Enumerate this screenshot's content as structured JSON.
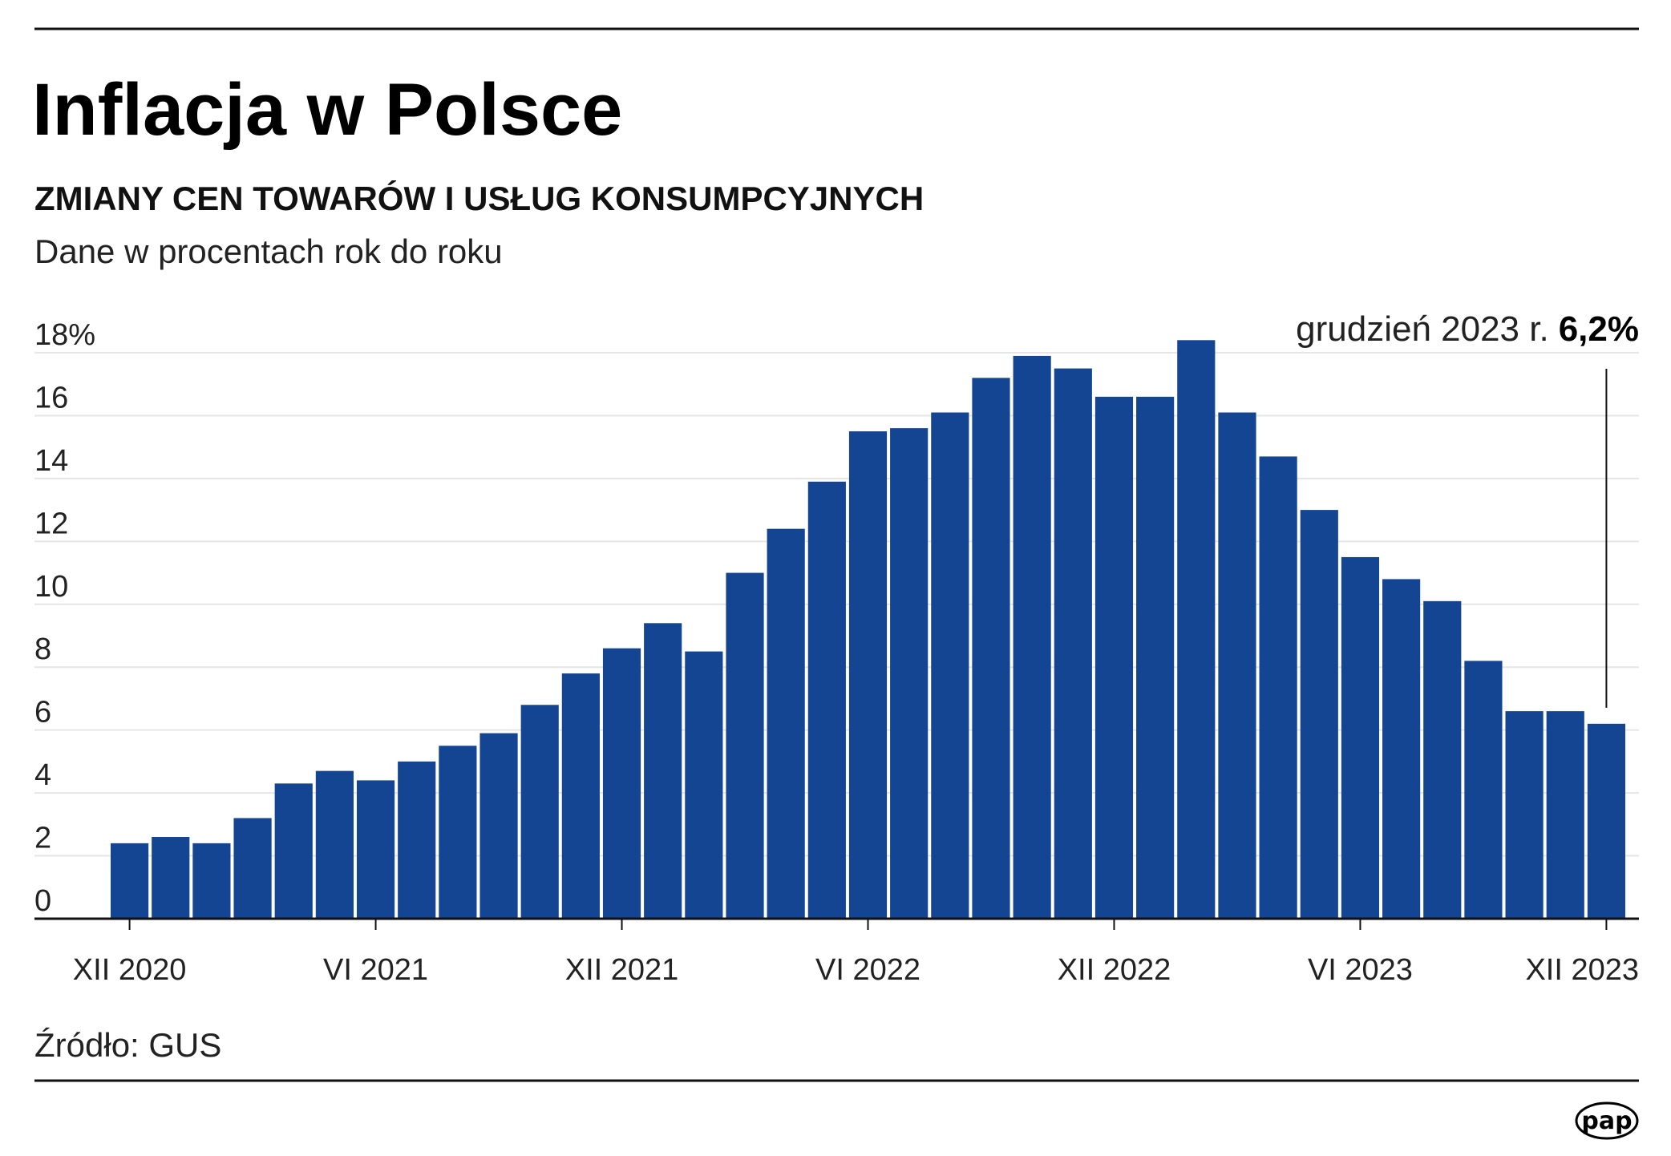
{
  "header": {
    "title": "Inflacja w Polsce",
    "subtitle": "ZMIANY CEN TOWARÓW I USŁUG KONSUMPCYJNYCH",
    "description": "Dane w procentach rok do roku"
  },
  "annotation": {
    "label": "grudzień 2023 r.",
    "value": "6,2%"
  },
  "source": "Źródło: GUS",
  "logo": "pap",
  "chart_data": {
    "type": "bar",
    "title": "Inflacja w Polsce",
    "ylim": [
      0,
      18
    ],
    "grid": true,
    "bar_color": "#134593",
    "y_ticks": [
      "0",
      "2",
      "4",
      "6",
      "8",
      "10",
      "12",
      "14",
      "16",
      "18%"
    ],
    "x_tick_labels": [
      {
        "index": 0,
        "label": "XII 2020"
      },
      {
        "index": 6,
        "label": "VI 2021"
      },
      {
        "index": 12,
        "label": "XII 2021"
      },
      {
        "index": 18,
        "label": "VI 2022"
      },
      {
        "index": 24,
        "label": "XII 2022"
      },
      {
        "index": 30,
        "label": "VI 2023"
      },
      {
        "index": 36,
        "label": "XII 2023"
      }
    ],
    "categories": [
      "XII 2020",
      "I 2021",
      "II 2021",
      "III 2021",
      "IV 2021",
      "V 2021",
      "VI 2021",
      "VII 2021",
      "VIII 2021",
      "IX 2021",
      "X 2021",
      "XI 2021",
      "XII 2021",
      "I 2022",
      "II 2022",
      "III 2022",
      "IV 2022",
      "V 2022",
      "VI 2022",
      "VII 2022",
      "VIII 2022",
      "IX 2022",
      "X 2022",
      "XI 2022",
      "XII 2022",
      "I 2023",
      "II 2023",
      "III 2023",
      "IV 2023",
      "V 2023",
      "VI 2023",
      "VII 2023",
      "VIII 2023",
      "IX 2023",
      "X 2023",
      "XI 2023",
      "XII 2023"
    ],
    "values": [
      2.4,
      2.6,
      2.4,
      3.2,
      4.3,
      4.7,
      4.4,
      5.0,
      5.5,
      5.9,
      6.8,
      7.8,
      8.6,
      9.4,
      8.5,
      11.0,
      12.4,
      13.9,
      15.5,
      15.6,
      16.1,
      17.2,
      17.9,
      17.5,
      16.6,
      16.6,
      18.4,
      16.1,
      14.7,
      13.0,
      11.5,
      10.8,
      10.1,
      8.2,
      6.6,
      6.6,
      6.2
    ]
  }
}
